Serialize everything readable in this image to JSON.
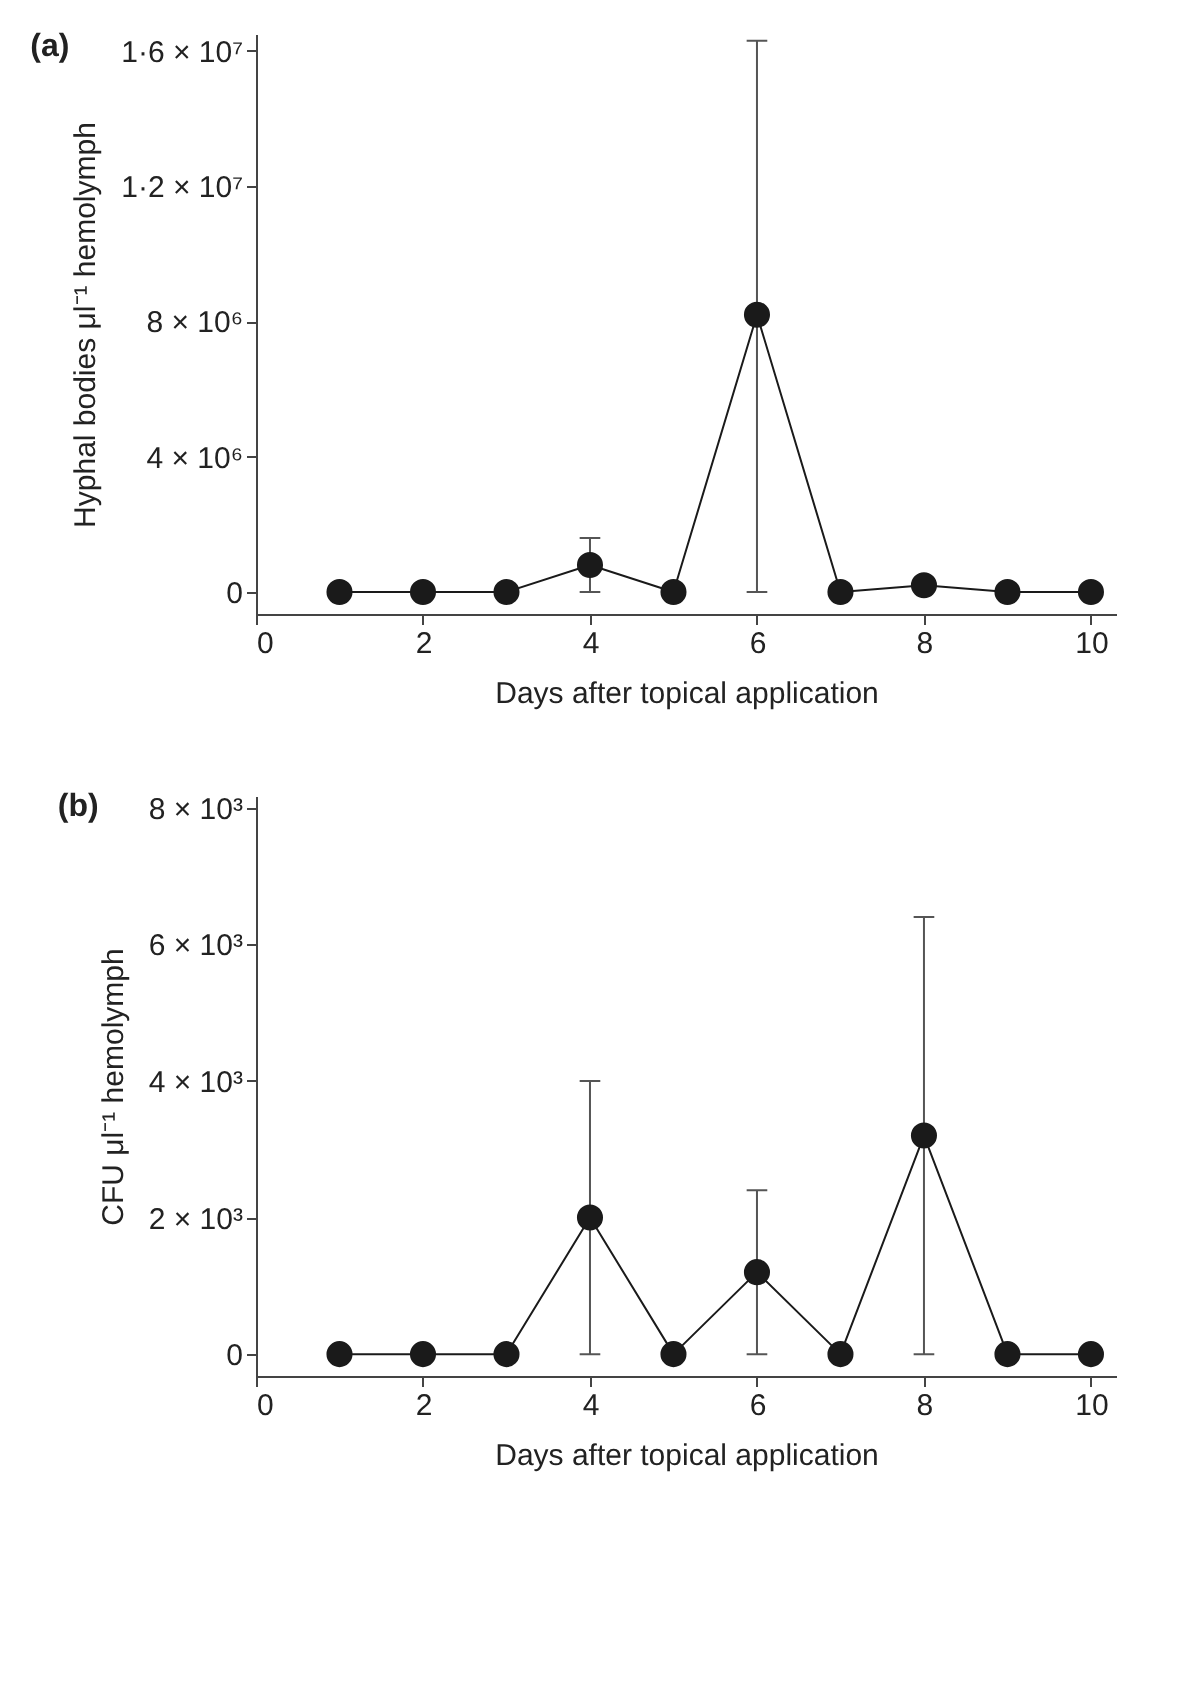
{
  "chart_data": [
    {
      "type": "line",
      "title": "(a)",
      "xlabel": "Days after topical application",
      "ylabel": "Hyphal bodies μl⁻¹ hemolymph",
      "x": [
        1,
        2,
        3,
        4,
        5,
        6,
        7,
        8,
        9,
        10
      ],
      "series": [
        {
          "color": "#1a1a1a",
          "values": [
            0,
            0,
            0,
            800000,
            0,
            8200000,
            0,
            200000,
            0,
            0
          ],
          "errors": [
            null,
            null,
            null,
            [
              0,
              1600000
            ],
            null,
            [
              0,
              16300000
            ],
            null,
            null,
            null,
            null
          ]
        }
      ],
      "xlim": [
        0,
        10.3
      ],
      "xticks": [
        0,
        2,
        4,
        6,
        8,
        10
      ],
      "ylim": [
        -650000,
        16500000
      ],
      "yticks": [
        0,
        {
          "value": 4000000,
          "label": "4 × 10⁶"
        },
        {
          "value": 8000000,
          "label": "8 × 10⁶"
        },
        {
          "value": 12000000,
          "label": "1·2 × 10⁷"
        },
        {
          "value": 16000000,
          "label": "1·6 × 10⁷"
        }
      ],
      "marker": "circle",
      "line_style": "solid",
      "grid": false,
      "legend": false
    },
    {
      "type": "line",
      "title": "(b)",
      "xlabel": "Days after topical application",
      "ylabel": "CFU μl⁻¹ hemolymph",
      "x": [
        1,
        2,
        3,
        4,
        5,
        6,
        7,
        8,
        9,
        10
      ],
      "series": [
        {
          "color": "#1a1a1a",
          "values": [
            0,
            0,
            0,
            2000,
            0,
            1200,
            0,
            3200,
            0,
            0
          ],
          "errors": [
            null,
            null,
            null,
            [
              0,
              4000
            ],
            null,
            [
              0,
              2400
            ],
            null,
            [
              0,
              6400
            ],
            null,
            null
          ]
        }
      ],
      "xlim": [
        0,
        10.3
      ],
      "xticks": [
        0,
        2,
        4,
        6,
        8,
        10
      ],
      "ylim": [
        -320,
        8170
      ],
      "yticks": [
        0,
        {
          "value": 2000,
          "label": "2 × 10³"
        },
        {
          "value": 4000,
          "label": "4 × 10³"
        },
        {
          "value": 6000,
          "label": "6 × 10³"
        },
        {
          "value": 8000,
          "label": "8 × 10³"
        }
      ],
      "marker": "circle",
      "line_style": "solid",
      "grid": false,
      "legend": false
    }
  ]
}
